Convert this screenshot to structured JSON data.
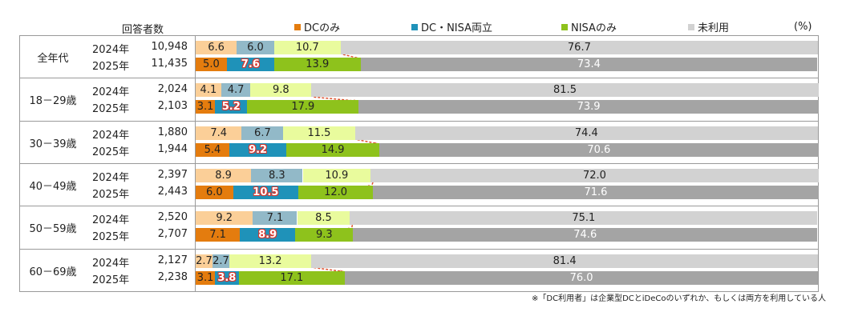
{
  "chart_data": {
    "type": "bar",
    "stacked": true,
    "orientation": "horizontal",
    "unit_label": "(%)",
    "header_label": "回答者数",
    "legend": [
      {
        "name": "DCのみ",
        "color_2024": "#fbcf98",
        "color_2025": "#e47c0e"
      },
      {
        "name": "DC・NISA両立",
        "color_2024": "#92b9c8",
        "color_2025": "#1f92b9"
      },
      {
        "name": "NISAのみ",
        "color_2024": "#e9fb9d",
        "color_2025": "#8ec21c"
      },
      {
        "name": "未利用",
        "color_2024": "#d2d2d2",
        "color_2025": "#a4a4a4"
      }
    ],
    "xlim": [
      0,
      100
    ],
    "groups": [
      {
        "label": "全年代",
        "rows": [
          {
            "year": "2024年",
            "count": "10,948",
            "values": [
              6.6,
              6.0,
              10.7,
              76.7
            ]
          },
          {
            "year": "2025年",
            "count": "11,435",
            "values": [
              5.0,
              7.6,
              13.9,
              73.4
            ]
          }
        ]
      },
      {
        "label": "18－29歳",
        "rows": [
          {
            "year": "2024年",
            "count": "2,024",
            "values": [
              4.1,
              4.7,
              9.8,
              81.5
            ]
          },
          {
            "year": "2025年",
            "count": "2,103",
            "values": [
              3.1,
              5.2,
              17.9,
              73.9
            ]
          }
        ]
      },
      {
        "label": "30－39歳",
        "rows": [
          {
            "year": "2024年",
            "count": "1,880",
            "values": [
              7.4,
              6.7,
              11.5,
              74.4
            ]
          },
          {
            "year": "2025年",
            "count": "1,944",
            "values": [
              5.4,
              9.2,
              14.9,
              70.6
            ]
          }
        ]
      },
      {
        "label": "40－49歳",
        "rows": [
          {
            "year": "2024年",
            "count": "2,397",
            "values": [
              8.9,
              8.3,
              10.9,
              72.0
            ]
          },
          {
            "year": "2025年",
            "count": "2,443",
            "values": [
              6.0,
              10.5,
              12.0,
              71.6
            ]
          }
        ]
      },
      {
        "label": "50－59歳",
        "rows": [
          {
            "year": "2024年",
            "count": "2,520",
            "values": [
              9.2,
              7.1,
              8.5,
              75.1
            ]
          },
          {
            "year": "2025年",
            "count": "2,707",
            "values": [
              7.1,
              8.9,
              9.3,
              74.6
            ]
          }
        ]
      },
      {
        "label": "60－69歳",
        "rows": [
          {
            "year": "2024年",
            "count": "2,127",
            "values": [
              2.7,
              2.7,
              13.2,
              81.4
            ]
          },
          {
            "year": "2025年",
            "count": "2,238",
            "values": [
              3.1,
              3.8,
              17.1,
              76.0
            ]
          }
        ]
      }
    ],
    "arrow_color": "#e0502f",
    "footnote": "※「DC利用者」は企業型DCとiDeCoのいずれか、もしくは両方を利用している人"
  }
}
